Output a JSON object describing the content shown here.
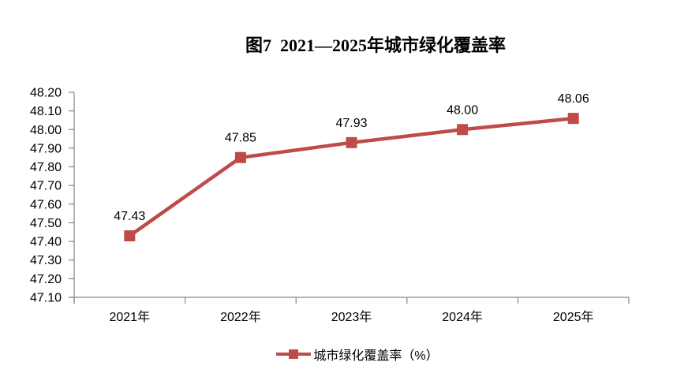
{
  "title": "图7  2021—2025年城市绿化覆盖率",
  "legend": {
    "label": "城市绿化覆盖率（%）"
  },
  "colors": {
    "series": "#BE4B48",
    "axis": "#878787",
    "text": "#000000"
  },
  "chart_data": {
    "type": "line",
    "title": "图7  2021—2025年城市绿化覆盖率",
    "categories": [
      "2021年",
      "2022年",
      "2023年",
      "2024年",
      "2025年"
    ],
    "series": [
      {
        "name": "城市绿化覆盖率（%）",
        "values": [
          47.43,
          47.85,
          47.93,
          48.0,
          48.06
        ]
      }
    ],
    "data_labels": [
      "47.43",
      "47.85",
      "47.93",
      "48.00",
      "48.06"
    ],
    "xlabel": "",
    "ylabel": "",
    "ylim": [
      47.1,
      48.2
    ],
    "ytick_step": 0.1,
    "ytick_labels": [
      "48.20",
      "48.10",
      "48.00",
      "47.90",
      "47.80",
      "47.70",
      "47.60",
      "47.50",
      "47.40",
      "47.30",
      "47.20",
      "47.10"
    ],
    "grid": false,
    "legend_position": "bottom",
    "marker": "square"
  }
}
